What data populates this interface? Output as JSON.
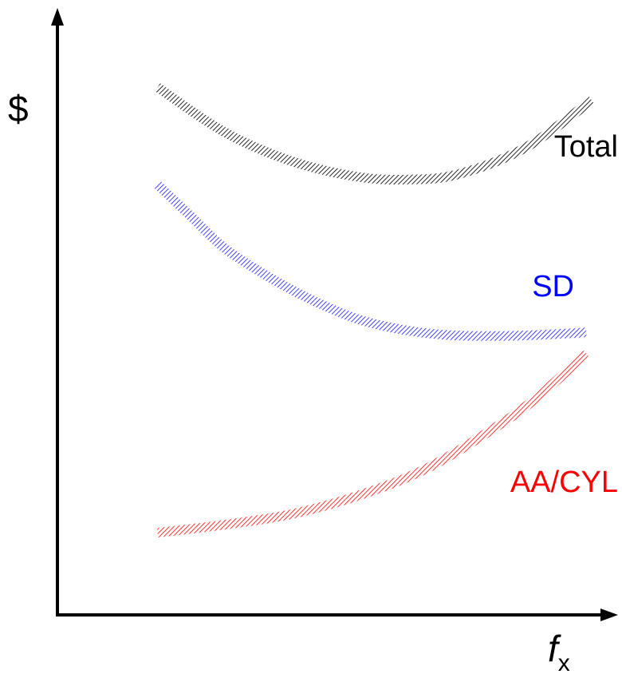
{
  "chart_data": {
    "type": "line",
    "ylabel": "$",
    "xlabel": {
      "main": "f",
      "sub": "x"
    },
    "xlim": [
      0,
      100
    ],
    "ylim": [
      0,
      100
    ],
    "axis_ticks": false,
    "grid": false,
    "series": [
      {
        "name": "Total",
        "color": "#111111",
        "label_color": "#000000",
        "x": [
          18,
          30,
          42,
          54,
          63,
          72,
          84,
          96
        ],
        "y": [
          89.5,
          81,
          75.5,
          72.5,
          72,
          73,
          78,
          87
        ]
      },
      {
        "name": "SD",
        "color": "#3030ff",
        "label_color": "#0000ff",
        "x": [
          18,
          24,
          30,
          38,
          46,
          54,
          62,
          70,
          78,
          86,
          95
        ],
        "y": [
          71,
          65,
          59,
          53.5,
          49,
          45.5,
          43.5,
          42.5,
          42.3,
          42.5,
          43
        ]
      },
      {
        "name": "AA/CYL",
        "color": "#ff2020",
        "label_color": "#ff0000",
        "x": [
          18,
          30,
          42,
          54,
          66,
          78,
          86,
          95
        ],
        "y": [
          5,
          6.5,
          8.5,
          12,
          17,
          24.5,
          30.5,
          39
        ]
      }
    ]
  }
}
